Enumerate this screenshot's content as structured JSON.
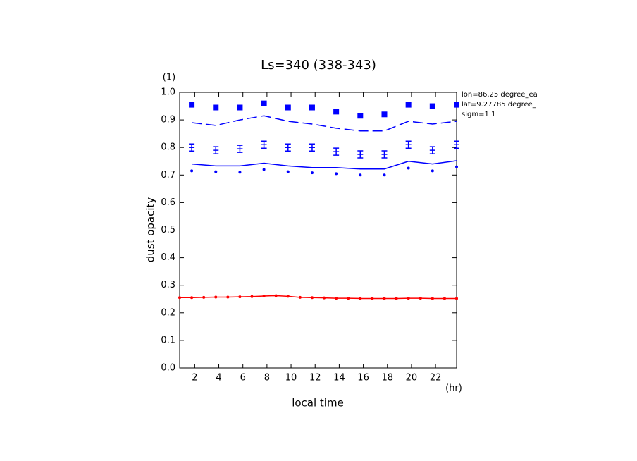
{
  "chart_data": {
    "type": "line",
    "title": "Ls=340 (338-343)",
    "y_label": "dust opacity",
    "y_unit": "(1)",
    "x_label": "local time",
    "x_unit": "(hr)",
    "annotations": [
      "lon=86.25 degree_ea",
      "lat=9.27785 degree_",
      "sigm=1 1"
    ],
    "xlim": [
      0.75,
      23.75
    ],
    "xticks": [
      2,
      4,
      6,
      8,
      10,
      12,
      14,
      16,
      18,
      20,
      22
    ],
    "ylim": [
      0,
      1
    ],
    "yticks": [
      {
        "value": 0,
        "label": "0.0"
      },
      0.1,
      0.2,
      0.3,
      0.4,
      0.5,
      0.6,
      0.7,
      0.8,
      0.9,
      {
        "value": 1,
        "label": "1.0"
      }
    ],
    "series": [
      {
        "color": "#0000ff",
        "style": "markers",
        "marker": "square",
        "x": [
          1.75,
          3.75,
          5.75,
          7.75,
          9.75,
          11.75,
          13.75,
          15.75,
          17.75,
          19.75,
          21.75,
          23.75
        ],
        "values": [
          0.955,
          0.945,
          0.945,
          0.96,
          0.945,
          0.945,
          0.93,
          0.915,
          0.92,
          0.955,
          0.95,
          0.955
        ]
      },
      {
        "color": "#0000ff",
        "style": "dashed",
        "marker": "none",
        "x": [
          1.75,
          3.75,
          5.75,
          7.75,
          9.75,
          11.75,
          13.75,
          15.75,
          17.75,
          19.75,
          21.75,
          23.75
        ],
        "values": [
          0.89,
          0.88,
          0.9,
          0.915,
          0.895,
          0.885,
          0.87,
          0.86,
          0.86,
          0.895,
          0.885,
          0.895
        ]
      },
      {
        "color": "#0000ff",
        "style": "markers",
        "marker": "plus",
        "x": [
          1.75,
          3.75,
          5.75,
          7.75,
          9.75,
          11.75,
          13.75,
          15.75,
          17.75,
          19.75,
          21.75,
          23.75
        ],
        "values": [
          0.8,
          0.79,
          0.795,
          0.81,
          0.8,
          0.8,
          0.785,
          0.775,
          0.775,
          0.81,
          0.79,
          0.81
        ]
      },
      {
        "color": "#0000ff",
        "style": "solid",
        "marker": "none",
        "x": [
          1.75,
          3.75,
          5.75,
          7.75,
          9.75,
          11.75,
          13.75,
          15.75,
          17.75,
          19.75,
          21.75,
          23.75
        ],
        "values": [
          0.74,
          0.733,
          0.733,
          0.743,
          0.733,
          0.727,
          0.727,
          0.722,
          0.722,
          0.75,
          0.74,
          0.752
        ]
      },
      {
        "color": "#0000ff",
        "style": "markers",
        "marker": "dot",
        "x": [
          1.75,
          3.75,
          5.75,
          7.75,
          9.75,
          11.75,
          13.75,
          15.75,
          17.75,
          19.75,
          21.75,
          23.75
        ],
        "values": [
          0.715,
          0.712,
          0.71,
          0.72,
          0.712,
          0.708,
          0.705,
          0.7,
          0.7,
          0.725,
          0.715,
          0.73
        ]
      },
      {
        "color": "#ff0000",
        "style": "solid",
        "marker": "dot",
        "x": [
          0.75,
          1.75,
          2.75,
          3.75,
          4.75,
          5.75,
          6.75,
          7.75,
          8.75,
          9.75,
          10.75,
          11.75,
          12.75,
          13.75,
          14.75,
          15.75,
          16.75,
          17.75,
          18.75,
          19.75,
          20.75,
          21.75,
          22.75,
          23.75
        ],
        "values": [
          0.255,
          0.255,
          0.256,
          0.257,
          0.257,
          0.258,
          0.259,
          0.261,
          0.262,
          0.26,
          0.256,
          0.255,
          0.254,
          0.253,
          0.253,
          0.252,
          0.252,
          0.252,
          0.252,
          0.253,
          0.253,
          0.252,
          0.252,
          0.252
        ]
      }
    ]
  }
}
